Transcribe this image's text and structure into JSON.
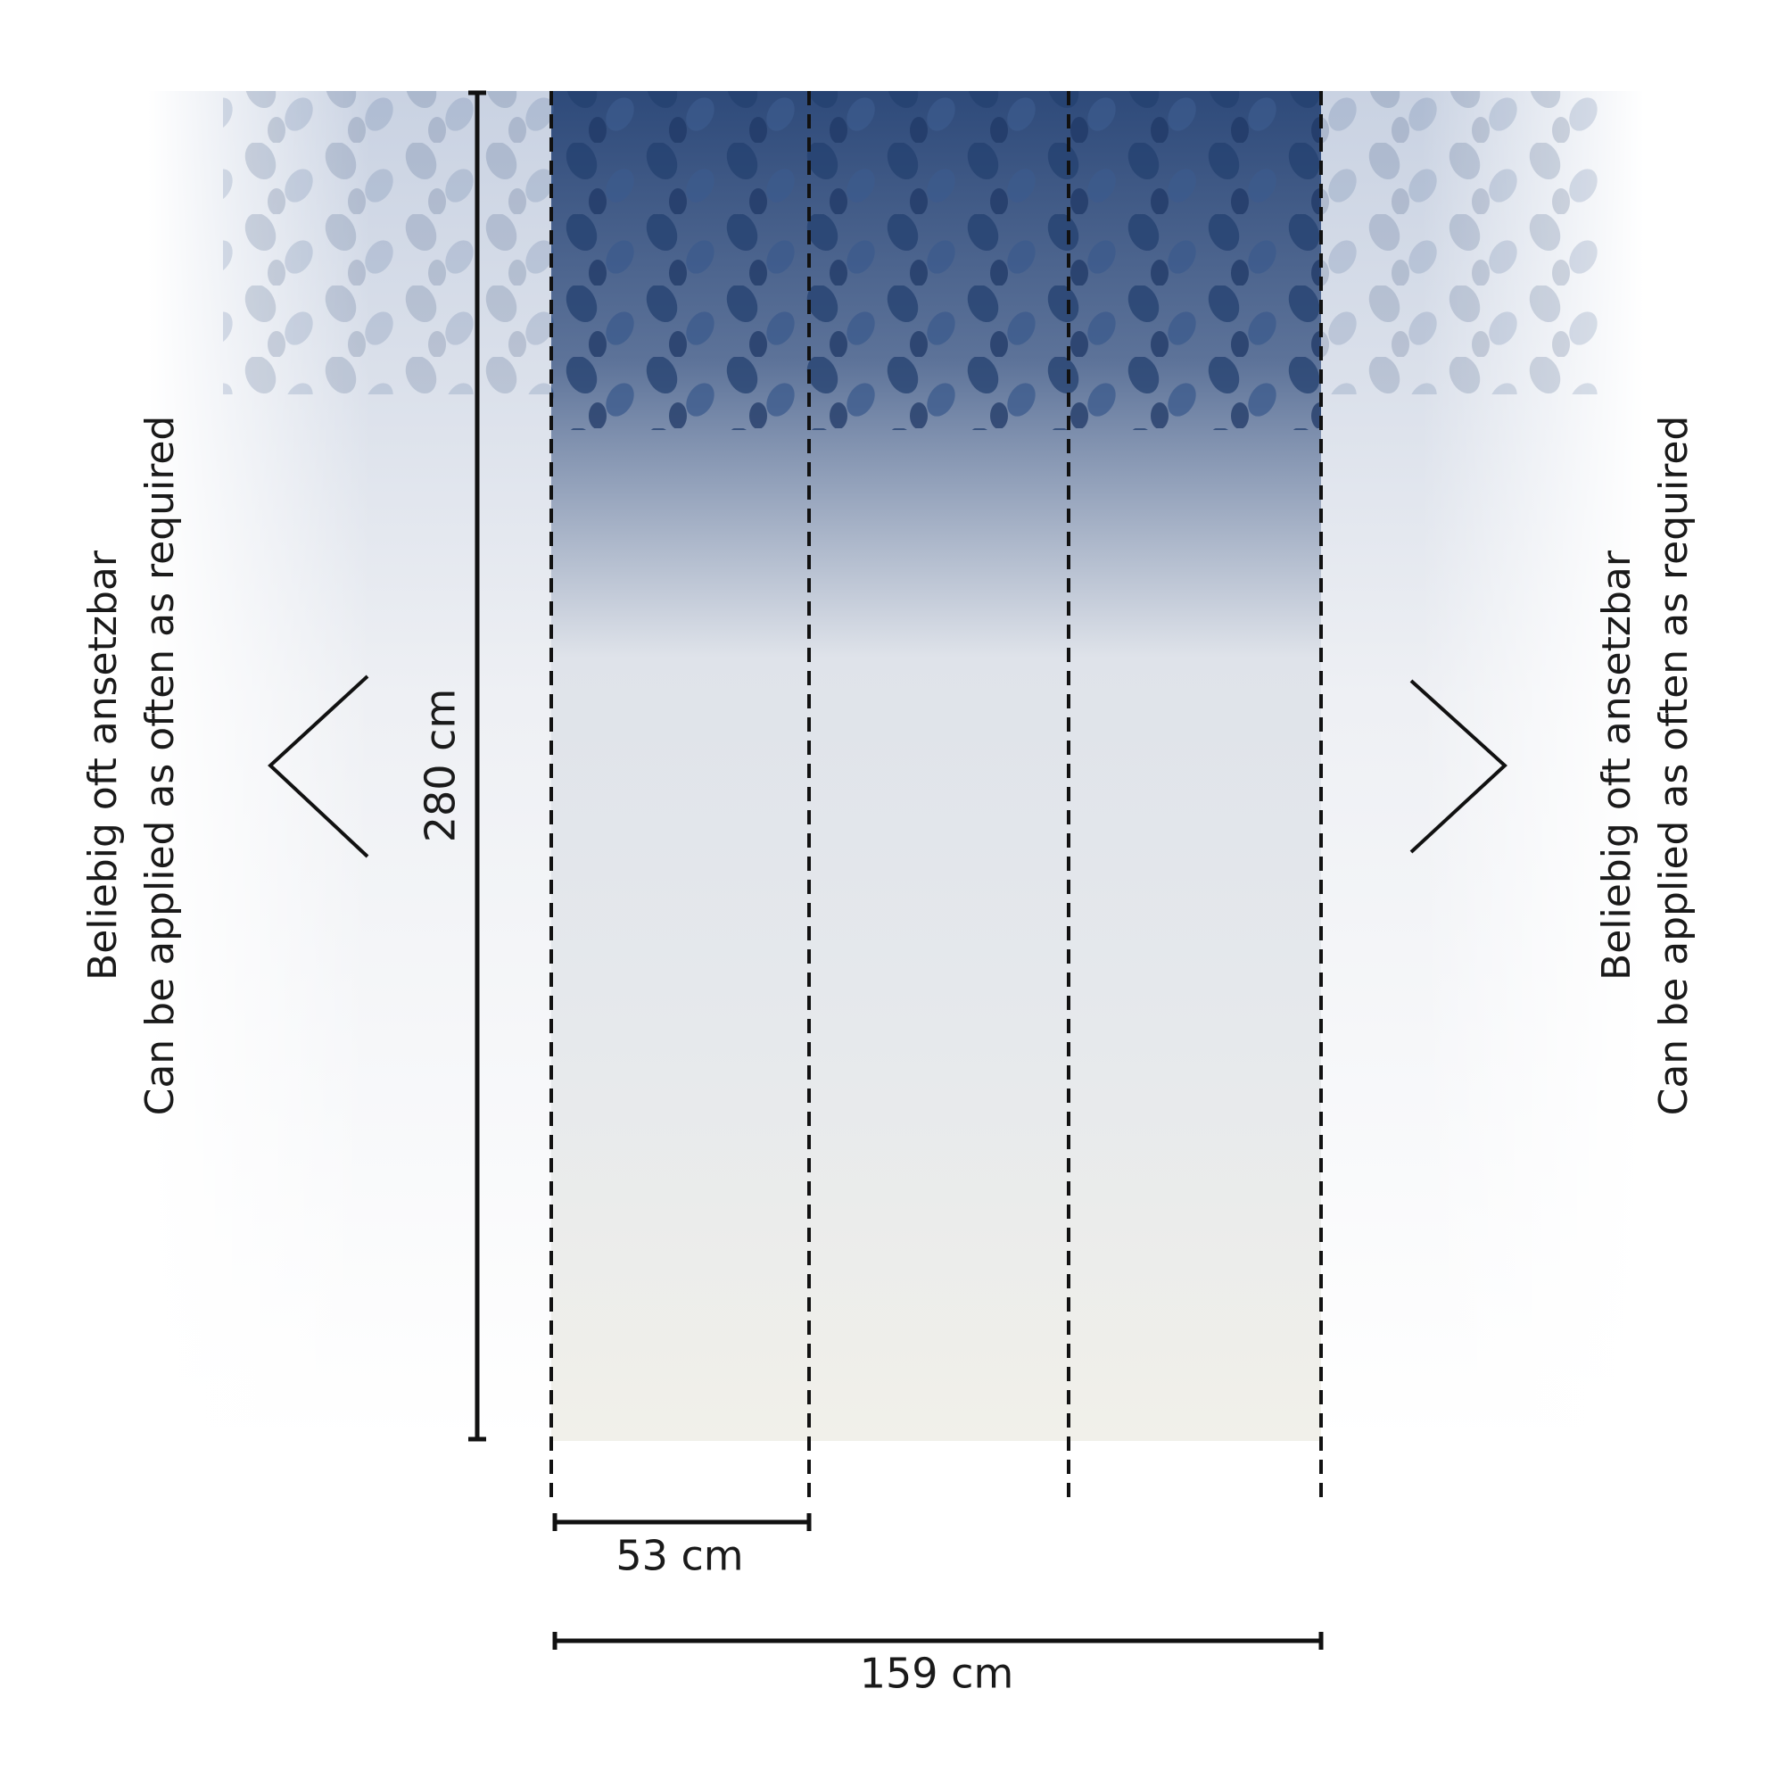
{
  "left_note": {
    "lines": [
      "Beliebig oft ansetzbar",
      "Can be applied as often as required"
    ]
  },
  "right_note": {
    "lines": [
      "Beliebig oft ansetzbar",
      "Can be applied as often as required"
    ]
  },
  "dimensions": {
    "height": "280 cm",
    "panel_width": "53 cm",
    "total_width": "159 cm"
  }
}
